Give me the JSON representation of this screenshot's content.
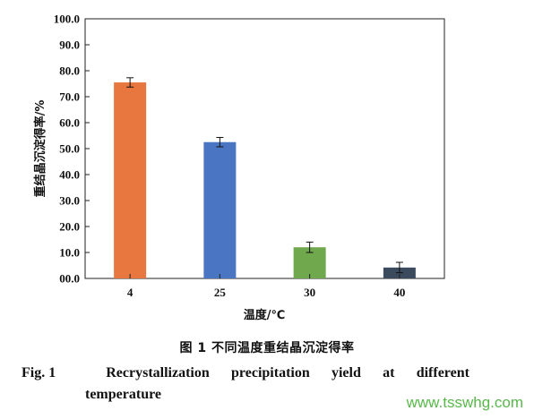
{
  "chart_data": {
    "type": "bar",
    "categories": [
      "4",
      "25",
      "30",
      "40"
    ],
    "values": [
      75.5,
      52.5,
      12.0,
      4.2
    ],
    "errors": [
      1.8,
      1.8,
      2.0,
      2.0
    ],
    "colors": [
      "#e8773f",
      "#4a75c3",
      "#6fa84d",
      "#3c4a5e"
    ],
    "xlabel": "温度/℃",
    "ylabel": "重结晶沉淀得率/%",
    "ylim": [
      0,
      100
    ],
    "yticks": [
      "00.0",
      "10.0",
      "20.0",
      "30.0",
      "40.0",
      "50.0",
      "60.0",
      "70.0",
      "80.0",
      "90.0",
      "100.0"
    ],
    "grid": false
  },
  "caption": {
    "cn": "图 1   不同温度重结晶沉淀得率",
    "en_label": "Fig. 1",
    "en_line1_words": [
      "Recrystallization",
      "precipitation",
      "yield",
      "at",
      "different"
    ],
    "en_line2": "temperature"
  },
  "watermark": "www.tsswhg.com"
}
